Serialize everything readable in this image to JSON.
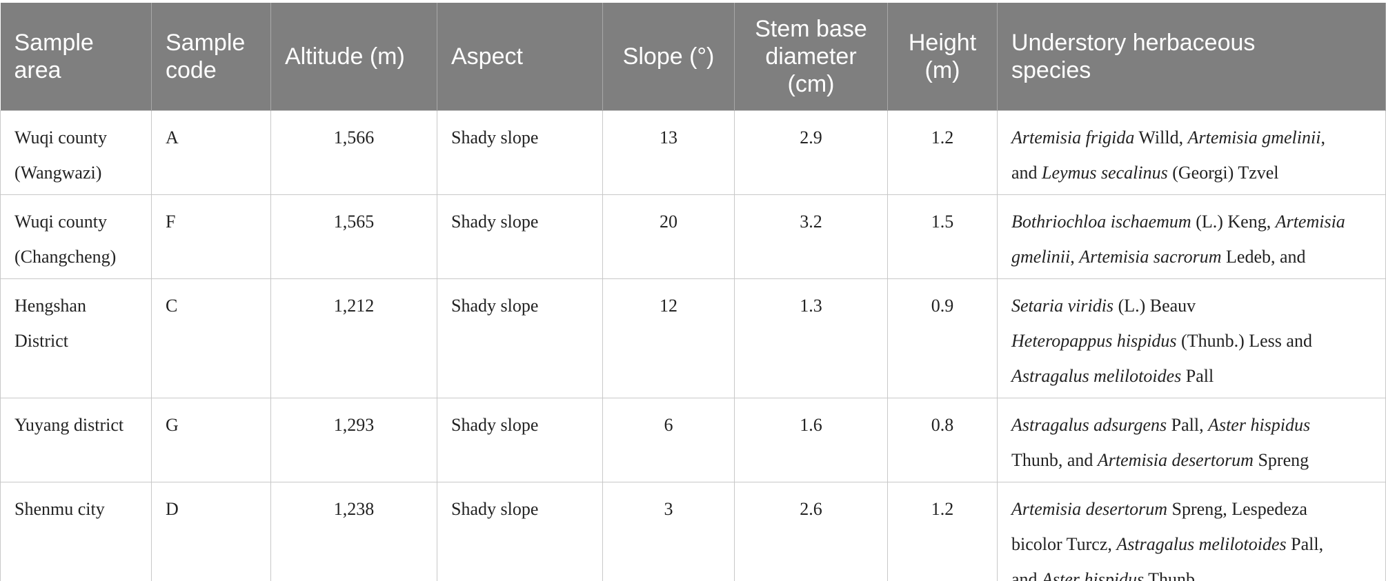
{
  "table": {
    "headers": [
      [
        "Sample",
        "area"
      ],
      [
        "Sample",
        "code"
      ],
      [
        "Altitude (m)"
      ],
      [
        "Aspect"
      ],
      [
        "Slope (°)"
      ],
      [
        "Stem base",
        "diameter",
        "(cm)"
      ],
      [
        "Height",
        "(m)"
      ],
      [
        "Understory herbaceous",
        "species"
      ]
    ],
    "rows": [
      {
        "area": [
          "Wuqi county",
          "(Wangwazi)"
        ],
        "code": "A",
        "altitude": "1,566",
        "aspect": "Shady slope",
        "slope": "13",
        "diameter": "2.9",
        "height": "1.2",
        "species": [
          [
            {
              "text": "Artemisia frigida",
              "italic": true
            },
            {
              "text": " Willd, ",
              "italic": false
            },
            {
              "text": "Artemisia gmelinii",
              "italic": true
            },
            {
              "text": ",",
              "italic": false
            }
          ],
          [
            {
              "text": "and ",
              "italic": false
            },
            {
              "text": "Leymus secalinus",
              "italic": true
            },
            {
              "text": " (Georgi) Tzvel",
              "italic": false
            }
          ]
        ]
      },
      {
        "area": [
          "Wuqi county",
          "(Changcheng)"
        ],
        "code": "F",
        "altitude": "1,565",
        "aspect": "Shady slope",
        "slope": "20",
        "diameter": "3.2",
        "height": "1.5",
        "species": [
          [
            {
              "text": "Bothriochloa ischaemum",
              "italic": true
            },
            {
              "text": " (L.) Keng, ",
              "italic": false
            },
            {
              "text": "Artemisia",
              "italic": true
            }
          ],
          [
            {
              "text": "gmelinii",
              "italic": true
            },
            {
              "text": ", ",
              "italic": false
            },
            {
              "text": "Artemisia sacrorum",
              "italic": true
            },
            {
              "text": " Ledeb, and",
              "italic": false
            }
          ]
        ]
      },
      {
        "area": [
          "Hengshan",
          "District"
        ],
        "code": "C",
        "altitude": "1,212",
        "aspect": "Shady slope",
        "slope": "12",
        "diameter": "1.3",
        "height": "0.9",
        "species": [
          [
            {
              "text": "Setaria viridis",
              "italic": true
            },
            {
              "text": " (L.) Beauv",
              "italic": false
            }
          ],
          [
            {
              "text": "Heteropappus hispidus",
              "italic": true
            },
            {
              "text": " (Thunb.) Less and",
              "italic": false
            }
          ],
          [
            {
              "text": "Astragalus melilotoides",
              "italic": true
            },
            {
              "text": " Pall",
              "italic": false
            }
          ]
        ]
      },
      {
        "area": [
          "Yuyang district"
        ],
        "code": "G",
        "altitude": "1,293",
        "aspect": "Shady slope",
        "slope": "6",
        "diameter": "1.6",
        "height": "0.8",
        "species": [
          [
            {
              "text": "Astragalus adsurgens",
              "italic": true
            },
            {
              "text": " Pall, ",
              "italic": false
            },
            {
              "text": "Aster hispidus",
              "italic": true
            }
          ],
          [
            {
              "text": "Thunb, and ",
              "italic": false
            },
            {
              "text": "Artemisia desertorum",
              "italic": true
            },
            {
              "text": " Spreng",
              "italic": false
            }
          ]
        ]
      },
      {
        "area": [
          "Shenmu city"
        ],
        "code": "D",
        "altitude": "1,238",
        "aspect": "Shady slope",
        "slope": "3",
        "diameter": "2.6",
        "height": "1.2",
        "species": [
          [
            {
              "text": "Artemisia desertorum",
              "italic": true
            },
            {
              "text": " Spreng, Lespedeza",
              "italic": false
            }
          ],
          [
            {
              "text": "bicolor Turcz, ",
              "italic": false
            },
            {
              "text": "Astragalus melilotoides",
              "italic": true
            },
            {
              "text": " Pall,",
              "italic": false
            }
          ],
          [
            {
              "text": "and ",
              "italic": false
            },
            {
              "text": "Aster hispidus",
              "italic": true
            },
            {
              "text": " Thunb",
              "italic": false
            }
          ]
        ]
      }
    ]
  }
}
